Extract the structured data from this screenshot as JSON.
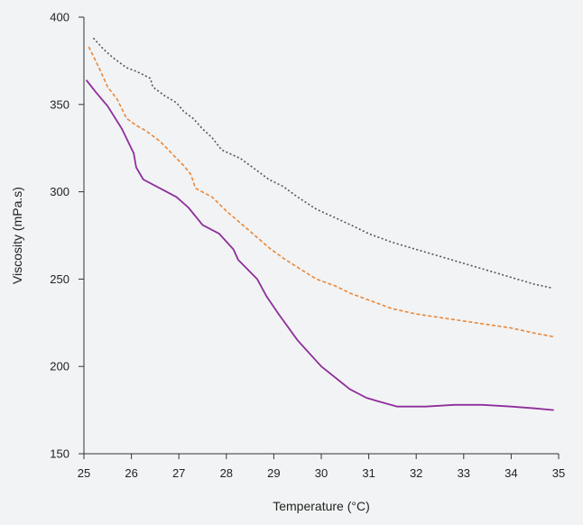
{
  "chart_data": {
    "type": "line",
    "title": "",
    "xlabel": "Temperature (°C)",
    "ylabel": "Viscosity (mPa.s)",
    "xlim": [
      25,
      35
    ],
    "ylim": [
      150,
      400
    ],
    "xticks": [
      25,
      26,
      27,
      28,
      29,
      30,
      31,
      32,
      33,
      34,
      35
    ],
    "yticks": [
      150,
      200,
      250,
      300,
      350,
      400
    ],
    "grid": false,
    "legend": "none",
    "series": [
      {
        "color": "#555555",
        "style": "dotted",
        "points": [
          [
            25.2,
            388
          ],
          [
            25.4,
            382
          ],
          [
            25.6,
            377
          ],
          [
            25.9,
            371
          ],
          [
            26.1,
            369
          ],
          [
            26.4,
            365
          ],
          [
            26.45,
            360
          ],
          [
            26.7,
            355
          ],
          [
            26.95,
            351
          ],
          [
            27.1,
            346
          ],
          [
            27.3,
            342
          ],
          [
            27.5,
            336
          ],
          [
            27.7,
            331
          ],
          [
            27.9,
            324
          ],
          [
            28.3,
            319
          ],
          [
            28.6,
            313
          ],
          [
            28.9,
            307
          ],
          [
            29.2,
            303
          ],
          [
            29.5,
            297
          ],
          [
            29.9,
            290
          ],
          [
            30.3,
            285
          ],
          [
            30.7,
            280
          ],
          [
            31.0,
            276
          ],
          [
            31.5,
            271
          ],
          [
            32.0,
            267
          ],
          [
            32.5,
            263
          ],
          [
            33.0,
            259
          ],
          [
            33.5,
            255
          ],
          [
            34.0,
            251
          ],
          [
            34.5,
            247
          ],
          [
            34.85,
            245
          ]
        ]
      },
      {
        "color": "#e8883a",
        "style": "dashed",
        "points": [
          [
            25.1,
            383
          ],
          [
            25.3,
            372
          ],
          [
            25.5,
            360
          ],
          [
            25.7,
            353
          ],
          [
            25.9,
            342
          ],
          [
            26.1,
            338
          ],
          [
            26.3,
            335
          ],
          [
            26.6,
            329
          ],
          [
            26.85,
            322
          ],
          [
            27.1,
            315
          ],
          [
            27.25,
            310
          ],
          [
            27.35,
            302
          ],
          [
            27.7,
            297
          ],
          [
            28.0,
            289
          ],
          [
            28.3,
            282
          ],
          [
            28.6,
            275
          ],
          [
            28.9,
            268
          ],
          [
            29.2,
            262
          ],
          [
            29.6,
            255
          ],
          [
            29.9,
            250
          ],
          [
            30.3,
            246
          ],
          [
            30.6,
            242
          ],
          [
            31.0,
            238
          ],
          [
            31.5,
            233
          ],
          [
            32.0,
            230
          ],
          [
            32.5,
            228
          ],
          [
            33.0,
            226
          ],
          [
            33.5,
            224
          ],
          [
            34.0,
            222
          ],
          [
            34.5,
            219
          ],
          [
            34.9,
            217
          ]
        ]
      },
      {
        "color": "#8e2e9c",
        "style": "solid",
        "points": [
          [
            25.05,
            364
          ],
          [
            25.25,
            357
          ],
          [
            25.5,
            349
          ],
          [
            25.8,
            336
          ],
          [
            26.05,
            322
          ],
          [
            26.1,
            314
          ],
          [
            26.25,
            307
          ],
          [
            26.6,
            302
          ],
          [
            26.95,
            297
          ],
          [
            27.2,
            291
          ],
          [
            27.5,
            281
          ],
          [
            27.85,
            276
          ],
          [
            28.15,
            267
          ],
          [
            28.25,
            261
          ],
          [
            28.65,
            250
          ],
          [
            28.85,
            240
          ],
          [
            29.1,
            230
          ],
          [
            29.5,
            215
          ],
          [
            30.0,
            200
          ],
          [
            30.6,
            187
          ],
          [
            30.95,
            182
          ],
          [
            31.2,
            180
          ],
          [
            31.6,
            177
          ],
          [
            32.2,
            177
          ],
          [
            32.8,
            178
          ],
          [
            33.4,
            178
          ],
          [
            34.0,
            177
          ],
          [
            34.5,
            176
          ],
          [
            34.9,
            175
          ]
        ]
      }
    ]
  }
}
